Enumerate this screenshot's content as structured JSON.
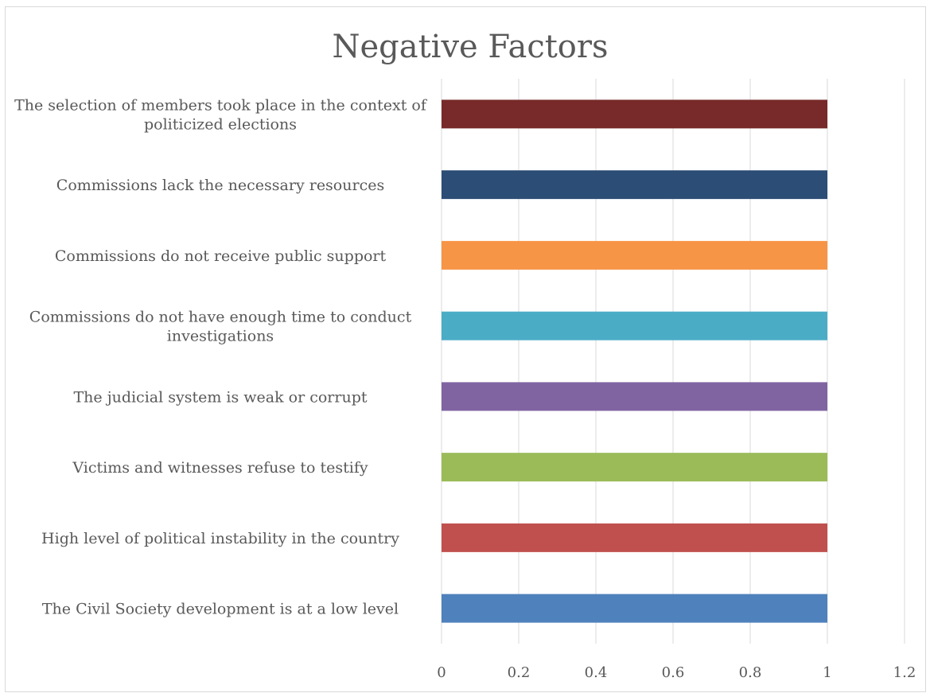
{
  "chart_data": {
    "type": "bar",
    "orientation": "horizontal",
    "title": "Negative Factors",
    "xlabel": "",
    "ylabel": "",
    "xlim": [
      0,
      1.2
    ],
    "x_ticks": [
      "0",
      "0.2",
      "0.4",
      "0.6",
      "0.8",
      "1",
      "1.2"
    ],
    "grid": "vertical",
    "legend": "none",
    "categories": [
      "The selection of members took place in the context of politicized elections",
      "Commissions lack the necessary resources",
      "Commissions do not receive public support",
      "Commissions do not have enough time to conduct investigations",
      "The judicial system is weak or corrupt",
      "Victims and witnesses refuse to testify",
      "High level of political instability in the country",
      "The Civil Society development is at a low level"
    ],
    "values": [
      1,
      1,
      1,
      1,
      1,
      1,
      1,
      1
    ],
    "colors": [
      "#772a29",
      "#2c4d75",
      "#f69546",
      "#4bacc6",
      "#8064a2",
      "#9bbb59",
      "#c0504d",
      "#4f81bd"
    ]
  }
}
